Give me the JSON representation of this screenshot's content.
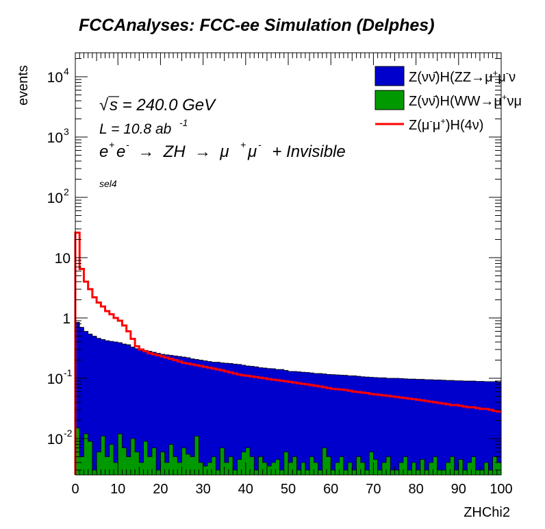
{
  "chart_data": {
    "type": "histogram",
    "title": "FCCAnalyses: FCC-ee Simulation (Delphes)",
    "xlabel": "ZHChi2",
    "ylabel": "events",
    "xlim": [
      0,
      100
    ],
    "ylim": [
      0.0025,
      25000
    ],
    "log_y": true,
    "grid": false,
    "legend_position": "top-right",
    "x_ticks": [
      0,
      10,
      20,
      30,
      40,
      50,
      60,
      70,
      80,
      90,
      100
    ],
    "x_tick_labels": [
      "0",
      "10",
      "20",
      "30",
      "40",
      "50",
      "60",
      "70",
      "80",
      "90",
      "100"
    ],
    "y_ticks": [
      0.01,
      0.1,
      1,
      10,
      100,
      1000,
      10000
    ],
    "y_tick_labels": [
      {
        "base": "10",
        "exp": "-2"
      },
      {
        "base": "10",
        "exp": "-1"
      },
      {
        "base": "1",
        "exp": ""
      },
      {
        "base": "10",
        "exp": ""
      },
      {
        "base": "10",
        "exp": "2"
      },
      {
        "base": "10",
        "exp": "3"
      },
      {
        "base": "10",
        "exp": "4"
      }
    ],
    "annotations": {
      "sqrt_symbol": "√",
      "energy_s": "s",
      "energy_value": " = 240.0 GeV",
      "lumi_text": "L = 10.8 ab",
      "lumi_exp": "-1",
      "process_ep": "e",
      "process_ep_sup": "+",
      "process_em": "e",
      "process_em_sup": "-",
      "process_arrow1": "  →  ZH  →  μ",
      "process_mu_sup1": "+",
      "process_mu": "μ",
      "process_mu_sup2": "-",
      "process_tail": "  + Invisible",
      "selection": "sel4"
    },
    "legend": [
      {
        "label_pre": "Z(νν̄)H(ZZ→μ",
        "label_sup1": "+",
        "label_mid": "μ",
        "label_sup2": "-",
        "label_post": "ν",
        "style": "fill"
      },
      {
        "label_pre": "Z(νν̄)H(WW→μ",
        "label_sup1": "+",
        "label_mid": "νμ",
        "label_sup2": "",
        "label_post": "",
        "style": "fill"
      },
      {
        "label_pre": "Z(μ",
        "label_sup1": "-",
        "label_mid": "μ",
        "label_sup2": "+",
        "label_post": ")H(4ν)",
        "style": "line"
      }
    ],
    "colors": {
      "zz": "#0000cc",
      "ww": "#009900",
      "signal": "#ff0000"
    },
    "bin_width": 1,
    "series": [
      {
        "name": "Z(νν̄)H(ZZ→μ+μ-ν",
        "style": "filled-step",
        "values": [
          0.85,
          0.7,
          0.6,
          0.54,
          0.5,
          0.46,
          0.44,
          0.42,
          0.41,
          0.4,
          0.39,
          0.37,
          0.36,
          0.33,
          0.31,
          0.3,
          0.29,
          0.28,
          0.27,
          0.26,
          0.25,
          0.245,
          0.24,
          0.235,
          0.23,
          0.225,
          0.22,
          0.21,
          0.205,
          0.2,
          0.195,
          0.19,
          0.185,
          0.185,
          0.18,
          0.178,
          0.176,
          0.172,
          0.17,
          0.165,
          0.16,
          0.158,
          0.155,
          0.15,
          0.148,
          0.145,
          0.144,
          0.14,
          0.14,
          0.135,
          0.13,
          0.13,
          0.128,
          0.126,
          0.125,
          0.123,
          0.12,
          0.12,
          0.118,
          0.116,
          0.115,
          0.114,
          0.113,
          0.112,
          0.11,
          0.11,
          0.108,
          0.106,
          0.105,
          0.104,
          0.103,
          0.102,
          0.102,
          0.1,
          0.1,
          0.1,
          0.099,
          0.098,
          0.097,
          0.097,
          0.096,
          0.096,
          0.095,
          0.095,
          0.094,
          0.094,
          0.093,
          0.092,
          0.092,
          0.091,
          0.091,
          0.09,
          0.09,
          0.09,
          0.089,
          0.089,
          0.088,
          0.088,
          0.088,
          0.087
        ]
      },
      {
        "name": "Z(νν̄)H(WW→μ+νμ",
        "style": "filled-step",
        "values": [
          0.015,
          0.005,
          0.012,
          0.009,
          0.003,
          0.006,
          0.011,
          0.005,
          0.008,
          0.004,
          0.012,
          0.007,
          0.005,
          0.01,
          0.006,
          0.004,
          0.009,
          0.005,
          0.007,
          0.003,
          0.006,
          0.004,
          0.008,
          0.005,
          0.004,
          0.007,
          0.0055,
          0.005,
          0.011,
          0.004,
          0.0035,
          0.004,
          0.005,
          0.003,
          0.007,
          0.004,
          0.005,
          0.003,
          0.0045,
          0.006,
          0.007,
          0.005,
          0.003,
          0.005,
          0.004,
          0.0035,
          0.004,
          0.0045,
          0.003,
          0.006,
          0.004,
          0.005,
          0.003,
          0.004,
          0.003,
          0.005,
          0.004,
          0.003,
          0.007,
          0.005,
          0.003,
          0.004,
          0.005,
          0.003,
          0.004,
          0.003,
          0.005,
          0.004,
          0.003,
          0.006,
          0.0045,
          0.003,
          0.004,
          0.005,
          0.003,
          0.003,
          0.004,
          0.005,
          0.003,
          0.004,
          0.003,
          0.0045,
          0.003,
          0.004,
          0.005,
          0.003,
          0.003,
          0.004,
          0.005,
          0.003,
          0.0045,
          0.003,
          0.004,
          0.005,
          0.003,
          0.003,
          0.004,
          0.003,
          0.005,
          0.004
        ]
      },
      {
        "name": "Z(μ-μ+)H(4ν)",
        "style": "line-step",
        "values": [
          26,
          6.5,
          4,
          3,
          2.2,
          1.8,
          1.55,
          1.3,
          1.15,
          1.0,
          0.9,
          0.75,
          0.6,
          0.45,
          0.34,
          0.3,
          0.28,
          0.26,
          0.25,
          0.24,
          0.23,
          0.22,
          0.21,
          0.2,
          0.19,
          0.18,
          0.175,
          0.17,
          0.165,
          0.16,
          0.155,
          0.15,
          0.145,
          0.14,
          0.135,
          0.13,
          0.125,
          0.12,
          0.115,
          0.112,
          0.11,
          0.107,
          0.105,
          0.102,
          0.1,
          0.097,
          0.095,
          0.093,
          0.091,
          0.089,
          0.087,
          0.085,
          0.083,
          0.081,
          0.079,
          0.077,
          0.075,
          0.073,
          0.071,
          0.069,
          0.067,
          0.066,
          0.065,
          0.064,
          0.062,
          0.06,
          0.059,
          0.058,
          0.057,
          0.055,
          0.054,
          0.053,
          0.052,
          0.051,
          0.05,
          0.049,
          0.048,
          0.047,
          0.046,
          0.045,
          0.044,
          0.043,
          0.042,
          0.041,
          0.04,
          0.039,
          0.038,
          0.037,
          0.036,
          0.036,
          0.035,
          0.034,
          0.033,
          0.033,
          0.032,
          0.031,
          0.031,
          0.03,
          0.029,
          0.028
        ]
      }
    ]
  }
}
